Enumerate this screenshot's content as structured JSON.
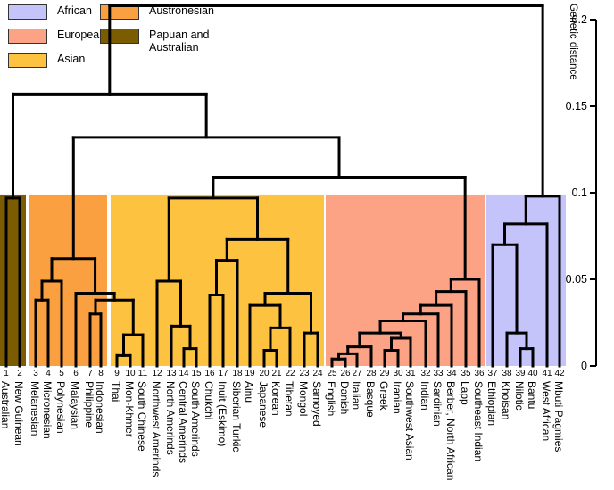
{
  "chart_data": {
    "type": "dendrogram",
    "title": "",
    "ylabel": "Genetic distance",
    "ylim": [
      0,
      0.2
    ],
    "yticks": [
      0,
      0.05,
      0.1,
      0.15,
      0.2
    ],
    "ytick_labels": [
      "0",
      "0.05",
      "0.1",
      "0.15",
      "0.2"
    ],
    "axis_position": "right",
    "legend_position": "top-left",
    "groups": [
      {
        "name": "African",
        "color": "#c4c4fb",
        "leaves": [
          37,
          42
        ]
      },
      {
        "name": "European",
        "color": "#fca386",
        "leaves": [
          25,
          36
        ]
      },
      {
        "name": "Asian",
        "color": "#fdc240",
        "leaves": [
          9,
          24
        ]
      },
      {
        "name": "Austronesian",
        "color": "#fba040",
        "leaves": [
          3,
          8
        ]
      },
      {
        "name": "Papuan and Australian",
        "color": "#7b5c00",
        "leaves": [
          1,
          2
        ]
      }
    ],
    "leaves": [
      {
        "id": 1,
        "name": "Australian"
      },
      {
        "id": 2,
        "name": "New Guinean"
      },
      {
        "id": 3,
        "name": "Melanesian"
      },
      {
        "id": 4,
        "name": "Micronesian"
      },
      {
        "id": 5,
        "name": "Polynesian"
      },
      {
        "id": 6,
        "name": "Malaysian"
      },
      {
        "id": 7,
        "name": "Philippine"
      },
      {
        "id": 8,
        "name": "Indonesian"
      },
      {
        "id": 9,
        "name": "Thai"
      },
      {
        "id": 10,
        "name": "Mon-Khmer"
      },
      {
        "id": 11,
        "name": "South Chinese"
      },
      {
        "id": 12,
        "name": "Northwest Amerinds"
      },
      {
        "id": 13,
        "name": "North Amerinds"
      },
      {
        "id": 14,
        "name": "Central Amerinds"
      },
      {
        "id": 15,
        "name": "South Amerinds"
      },
      {
        "id": 16,
        "name": "Chukchi"
      },
      {
        "id": 17,
        "name": "Inuit (Eskimo)"
      },
      {
        "id": 18,
        "name": "Siberian Turkic"
      },
      {
        "id": 19,
        "name": "Ainu"
      },
      {
        "id": 20,
        "name": "Japanese"
      },
      {
        "id": 21,
        "name": "Korean"
      },
      {
        "id": 22,
        "name": "Tibetan"
      },
      {
        "id": 23,
        "name": "Mongol"
      },
      {
        "id": 24,
        "name": "Samoyed"
      },
      {
        "id": 25,
        "name": "English"
      },
      {
        "id": 26,
        "name": "Danish"
      },
      {
        "id": 27,
        "name": "Italian"
      },
      {
        "id": 28,
        "name": "Basque"
      },
      {
        "id": 29,
        "name": "Greek"
      },
      {
        "id": 30,
        "name": "Iranian"
      },
      {
        "id": 31,
        "name": "Southwest Asian"
      },
      {
        "id": 32,
        "name": "Indian"
      },
      {
        "id": 33,
        "name": "Sardinian"
      },
      {
        "id": 34,
        "name": "Berber, North African"
      },
      {
        "id": 35,
        "name": "Lapp"
      },
      {
        "id": 36,
        "name": "Southeast Indian"
      },
      {
        "id": 37,
        "name": "Ethiopian"
      },
      {
        "id": 38,
        "name": "Khoisan"
      },
      {
        "id": 39,
        "name": "Nilotic"
      },
      {
        "id": 40,
        "name": "Bantu"
      },
      {
        "id": 41,
        "name": "West African"
      },
      {
        "id": 42,
        "name": "Mbuti Pagmies"
      }
    ],
    "tree": {
      "h": 0.208,
      "c": [
        {
          "h": 0.157,
          "c": [
            {
              "h": 0.097,
              "c": [
                1,
                2
              ]
            },
            {
              "h": 0.132,
              "c": [
                {
                  "h": 0.062,
                  "c": [
                    {
                      "h": 0.049,
                      "c": [
                        {
                          "h": 0.038,
                          "c": [
                            3,
                            4
                          ]
                        },
                        5
                      ]
                    },
                    {
                      "h": 0.042,
                      "c": [
                        6,
                        {
                          "h": 0.038,
                          "c": [
                            {
                              "h": 0.03,
                              "c": [
                                7,
                                8
                              ]
                            },
                            {
                              "h": 0.018,
                              "c": [
                                {
                                  "h": 0.006,
                                  "c": [
                                    9,
                                    10
                                  ]
                                },
                                11
                              ]
                            }
                          ]
                        }
                      ]
                    }
                  ]
                },
                {
                  "h": 0.109,
                  "c": [
                    {
                      "h": 0.097,
                      "c": [
                        {
                          "h": 0.049,
                          "c": [
                            12,
                            {
                              "h": 0.023,
                              "c": [
                                13,
                                {
                                  "h": 0.01,
                                  "c": [
                                    14,
                                    15
                                  ]
                                }
                              ]
                            }
                          ]
                        },
                        {
                          "h": 0.073,
                          "c": [
                            {
                              "h": 0.061,
                              "c": [
                                {
                                  "h": 0.041,
                                  "c": [
                                    16,
                                    17
                                  ]
                                },
                                18
                              ]
                            },
                            {
                              "h": 0.042,
                              "c": [
                                {
                                  "h": 0.035,
                                  "c": [
                                    19,
                                    {
                                      "h": 0.022,
                                      "c": [
                                        {
                                          "h": 0.009,
                                          "c": [
                                            20,
                                            21
                                          ]
                                        },
                                        22
                                      ]
                                    }
                                  ]
                                },
                                {
                                  "h": 0.019,
                                  "c": [
                                    23,
                                    24
                                  ]
                                }
                              ]
                            }
                          ]
                        }
                      ]
                    },
                    {
                      "h": 0.05,
                      "c": [
                        {
                          "h": 0.043,
                          "c": [
                            {
                              "h": 0.035,
                              "c": [
                                {
                                  "h": 0.03,
                                  "c": [
                                    {
                                      "h": 0.026,
                                      "c": [
                                        {
                                          "h": 0.019,
                                          "c": [
                                            {
                                              "h": 0.011,
                                              "c": [
                                                {
                                                  "h": 0.007,
                                                  "c": [
                                                    {
                                                      "h": 0.004,
                                                      "c": [
                                                        25,
                                                        26
                                                      ]
                                                    },
                                                    27
                                                  ]
                                                },
                                                28
                                              ]
                                            },
                                            {
                                              "h": 0.016,
                                              "c": [
                                                {
                                                  "h": 0.009,
                                                  "c": [
                                                    29,
                                                    30
                                                  ]
                                                },
                                                31
                                              ]
                                            }
                                          ]
                                        },
                                        32
                                      ]
                                    },
                                    33
                                  ]
                                },
                                34
                              ]
                            },
                            35
                          ]
                        },
                        36
                      ]
                    }
                  ]
                }
              ]
            }
          ]
        },
        {
          "h": 0.098,
          "c": [
            {
              "h": 0.082,
              "c": [
                {
                  "h": 0.07,
                  "c": [
                    37,
                    {
                      "h": 0.019,
                      "c": [
                        38,
                        {
                          "h": 0.01,
                          "c": [
                            39,
                            40
                          ]
                        }
                      ]
                    }
                  ]
                },
                41
              ]
            },
            42
          ]
        }
      ]
    }
  },
  "legend": {
    "items": [
      {
        "label": "African",
        "color": "#c4c4fb"
      },
      {
        "label": "European",
        "color": "#fca386"
      },
      {
        "label": "Asian",
        "color": "#fdc240"
      },
      {
        "label": "Austronesian",
        "color": "#fba040"
      },
      {
        "label": "Papuan and Australian",
        "label_line1": "Papuan and",
        "label_line2": "Australian",
        "color": "#7b5c00"
      }
    ]
  }
}
